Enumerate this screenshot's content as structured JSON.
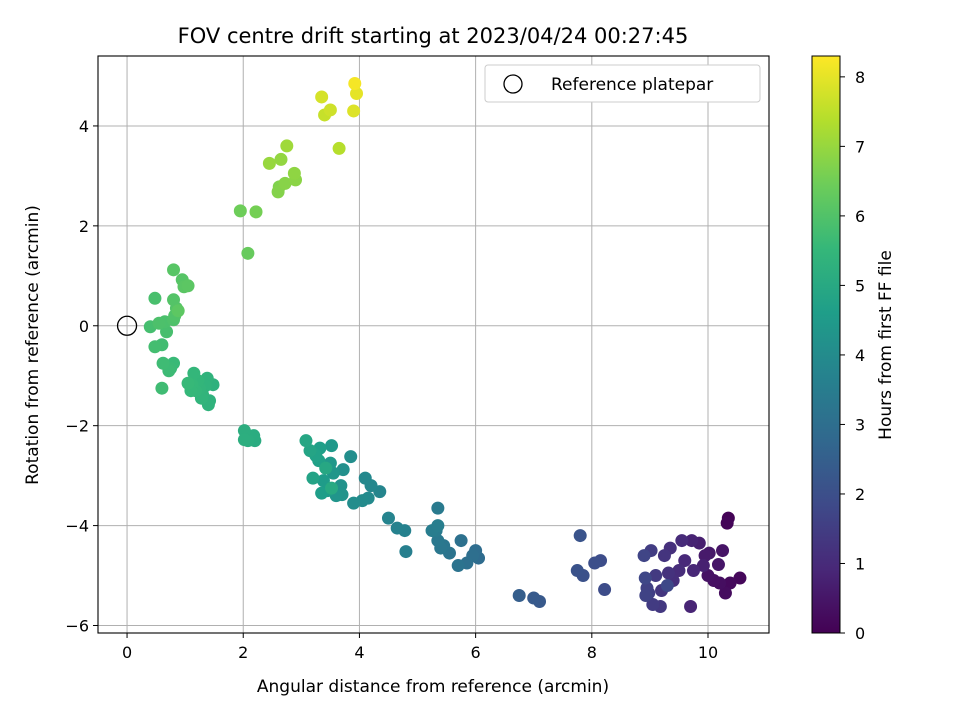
{
  "chart_data": {
    "type": "scatter",
    "title": "FOV centre drift starting at 2023/04/24 00:27:45",
    "xlabel": "Angular distance from reference (arcmin)",
    "ylabel": "Rotation from reference (arcmin)",
    "xlim": [
      -0.5,
      11.05
    ],
    "ylim": [
      -6.15,
      5.4
    ],
    "xticks": [
      0,
      2,
      4,
      6,
      8,
      10
    ],
    "yticks": [
      -6,
      -4,
      -2,
      0,
      2,
      4
    ],
    "xtick_labels": [
      "0",
      "2",
      "4",
      "6",
      "8",
      "10"
    ],
    "ytick_labels": [
      "−6",
      "−4",
      "−2",
      "0",
      "2",
      "4"
    ],
    "grid": true,
    "legend": {
      "position": "upper right",
      "entries": [
        "Reference platepar"
      ]
    },
    "colorbar": {
      "label": "Hours from first FF file",
      "range": [
        0,
        8.3
      ],
      "ticks": [
        0,
        1,
        2,
        3,
        4,
        5,
        6,
        7,
        8
      ],
      "tick_labels": [
        "0",
        "1",
        "2",
        "3",
        "4",
        "5",
        "6",
        "7",
        "8"
      ],
      "colormap": "viridis"
    },
    "reference_point": {
      "name": "Reference platepar",
      "x": 0,
      "y": 0
    },
    "series": [
      {
        "columns": [
          "x",
          "y",
          "hours"
        ],
        "points": [
          [
            10.35,
            -3.85,
            0.05
          ],
          [
            10.33,
            -3.95,
            0.1
          ],
          [
            10.55,
            -5.05,
            0.15
          ],
          [
            10.38,
            -5.15,
            0.2
          ],
          [
            10.3,
            -5.35,
            0.25
          ],
          [
            10.2,
            -5.15,
            0.3
          ],
          [
            10.1,
            -5.1,
            0.35
          ],
          [
            10.0,
            -5.0,
            0.4
          ],
          [
            10.25,
            -4.5,
            0.45
          ],
          [
            10.18,
            -4.78,
            0.5
          ],
          [
            10.02,
            -4.55,
            0.55
          ],
          [
            9.95,
            -4.6,
            0.6
          ],
          [
            9.85,
            -4.35,
            0.7
          ],
          [
            9.92,
            -4.8,
            0.75
          ],
          [
            9.72,
            -4.3,
            0.8
          ],
          [
            9.7,
            -5.62,
            0.85
          ],
          [
            9.75,
            -4.9,
            0.9
          ],
          [
            9.6,
            -4.7,
            0.95
          ],
          [
            9.55,
            -4.3,
            1.0
          ],
          [
            9.5,
            -4.9,
            1.05
          ],
          [
            9.4,
            -5.1,
            1.1
          ],
          [
            9.35,
            -4.45,
            1.15
          ],
          [
            9.32,
            -4.95,
            1.2
          ],
          [
            9.25,
            -4.6,
            1.25
          ],
          [
            9.2,
            -5.3,
            1.3
          ],
          [
            9.18,
            -5.62,
            1.35
          ],
          [
            9.1,
            -5.0,
            1.4
          ],
          [
            9.05,
            -5.58,
            1.45
          ],
          [
            9.02,
            -4.5,
            1.5
          ],
          [
            8.98,
            -5.35,
            1.55
          ],
          [
            8.95,
            -5.25,
            1.6
          ],
          [
            8.93,
            -5.4,
            1.65
          ],
          [
            8.9,
            -4.6,
            1.7
          ],
          [
            8.92,
            -5.05,
            1.75
          ],
          [
            9.3,
            -5.2,
            1.8
          ],
          [
            8.22,
            -5.28,
            1.9
          ],
          [
            8.15,
            -4.7,
            1.95
          ],
          [
            8.05,
            -4.75,
            2.0
          ],
          [
            7.85,
            -5.0,
            2.05
          ],
          [
            7.75,
            -4.9,
            2.1
          ],
          [
            7.8,
            -4.2,
            2.15
          ],
          [
            7.1,
            -5.52,
            2.3
          ],
          [
            7.0,
            -5.45,
            2.35
          ],
          [
            6.75,
            -5.4,
            2.45
          ],
          [
            6.05,
            -4.65,
            2.9
          ],
          [
            6.0,
            -4.5,
            2.95
          ],
          [
            5.95,
            -4.6,
            3.0
          ],
          [
            5.85,
            -4.75,
            3.05
          ],
          [
            5.75,
            -4.3,
            3.1
          ],
          [
            5.7,
            -4.8,
            3.15
          ],
          [
            5.55,
            -4.55,
            3.2
          ],
          [
            5.45,
            -4.4,
            3.25
          ],
          [
            5.4,
            -4.45,
            3.3
          ],
          [
            5.35,
            -4.3,
            3.35
          ],
          [
            5.35,
            -3.65,
            3.4
          ],
          [
            5.32,
            -4.1,
            3.45
          ],
          [
            5.25,
            -4.1,
            3.5
          ],
          [
            5.35,
            -4.0,
            3.55
          ],
          [
            4.8,
            -4.52,
            3.6
          ],
          [
            4.78,
            -4.1,
            3.65
          ],
          [
            4.65,
            -4.05,
            3.7
          ],
          [
            4.5,
            -3.85,
            3.75
          ],
          [
            4.35,
            -3.32,
            3.8
          ],
          [
            4.2,
            -3.2,
            3.85
          ],
          [
            4.1,
            -3.05,
            3.9
          ],
          [
            4.15,
            -3.45,
            3.95
          ],
          [
            4.05,
            -3.5,
            4.0
          ],
          [
            3.9,
            -3.55,
            4.05
          ],
          [
            3.85,
            -2.62,
            4.1
          ],
          [
            3.72,
            -2.88,
            4.15
          ],
          [
            3.68,
            -3.2,
            4.2
          ],
          [
            3.7,
            -3.38,
            4.25
          ],
          [
            3.6,
            -3.4,
            4.3
          ],
          [
            3.55,
            -2.95,
            4.35
          ],
          [
            3.5,
            -2.75,
            4.4
          ],
          [
            3.52,
            -2.4,
            4.45
          ],
          [
            3.45,
            -3.3,
            4.5
          ],
          [
            3.38,
            -3.1,
            4.55
          ],
          [
            3.35,
            -3.35,
            4.6
          ],
          [
            3.32,
            -2.45,
            4.65
          ],
          [
            3.3,
            -2.7,
            4.7
          ],
          [
            3.25,
            -2.6,
            4.75
          ],
          [
            3.2,
            -3.05,
            4.8
          ],
          [
            3.15,
            -2.5,
            4.85
          ],
          [
            3.08,
            -2.3,
            4.9
          ],
          [
            3.42,
            -2.85,
            4.95
          ],
          [
            3.52,
            -3.25,
            5.0
          ],
          [
            2.2,
            -2.3,
            5.1
          ],
          [
            2.18,
            -2.2,
            5.12
          ],
          [
            2.08,
            -2.3,
            5.15
          ],
          [
            2.02,
            -2.1,
            5.18
          ],
          [
            2.02,
            -2.28,
            5.2
          ],
          [
            1.48,
            -1.18,
            5.3
          ],
          [
            1.42,
            -1.5,
            5.32
          ],
          [
            1.4,
            -1.58,
            5.34
          ],
          [
            1.38,
            -1.05,
            5.36
          ],
          [
            1.35,
            -1.2,
            5.38
          ],
          [
            1.3,
            -1.38,
            5.4
          ],
          [
            1.28,
            -1.45,
            5.42
          ],
          [
            1.25,
            -1.25,
            5.44
          ],
          [
            1.22,
            -1.1,
            5.46
          ],
          [
            1.18,
            -1.3,
            5.48
          ],
          [
            1.15,
            -0.95,
            5.5
          ],
          [
            1.12,
            -1.18,
            5.52
          ],
          [
            1.1,
            -1.3,
            5.54
          ],
          [
            1.05,
            -1.15,
            5.56
          ],
          [
            0.8,
            -0.75,
            5.6
          ],
          [
            0.75,
            -0.85,
            5.63
          ],
          [
            0.72,
            -0.9,
            5.66
          ],
          [
            0.62,
            -0.75,
            5.69
          ],
          [
            0.6,
            -1.25,
            5.72
          ],
          [
            0.6,
            -0.38,
            5.75
          ],
          [
            0.48,
            -0.42,
            5.78
          ],
          [
            0.4,
            -0.02,
            5.81
          ],
          [
            0.68,
            -0.12,
            5.84
          ],
          [
            0.48,
            0.55,
            5.87
          ],
          [
            0.65,
            0.08,
            5.9
          ],
          [
            0.55,
            0.05,
            5.93
          ],
          [
            0.8,
            0.12,
            5.96
          ],
          [
            0.82,
            0.2,
            5.99
          ],
          [
            0.85,
            0.35,
            6.02
          ],
          [
            0.8,
            0.52,
            6.05
          ],
          [
            0.95,
            0.92,
            6.08
          ],
          [
            0.8,
            1.12,
            6.11
          ],
          [
            0.98,
            0.78,
            6.14
          ],
          [
            1.05,
            0.8,
            6.17
          ],
          [
            0.88,
            0.3,
            6.2
          ],
          [
            2.08,
            1.45,
            6.35
          ],
          [
            1.95,
            2.3,
            6.45
          ],
          [
            2.22,
            2.28,
            6.55
          ],
          [
            2.62,
            2.78,
            6.7
          ],
          [
            2.6,
            2.68,
            6.75
          ],
          [
            2.72,
            2.85,
            6.8
          ],
          [
            2.9,
            2.92,
            6.85
          ],
          [
            2.88,
            3.05,
            6.9
          ],
          [
            2.65,
            3.33,
            6.95
          ],
          [
            2.45,
            3.25,
            7.0
          ],
          [
            2.75,
            3.6,
            7.1
          ],
          [
            3.65,
            3.55,
            7.4
          ],
          [
            3.4,
            4.22,
            7.6
          ],
          [
            3.5,
            4.32,
            7.7
          ],
          [
            3.35,
            4.58,
            7.8
          ],
          [
            3.9,
            4.3,
            7.9
          ],
          [
            3.95,
            4.65,
            8.0
          ],
          [
            3.92,
            4.85,
            8.2
          ]
        ]
      }
    ]
  }
}
